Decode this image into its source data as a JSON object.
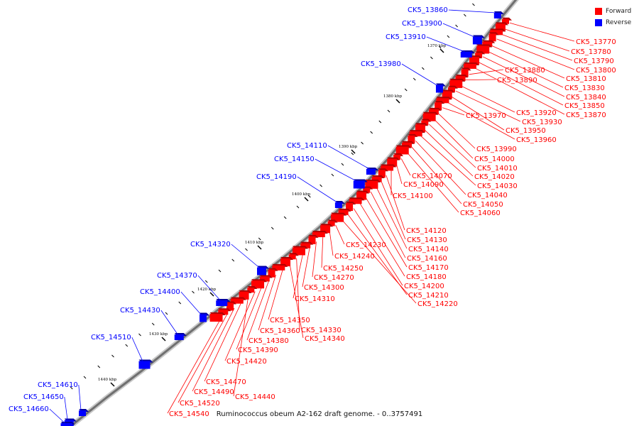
{
  "caption": "Ruminococcus obeum A2-162 draft genome. - 0..3757491",
  "legend": [
    {
      "label": "Forward",
      "color": "#ff0000"
    },
    {
      "label": "Reverse",
      "color": "#0000ff"
    }
  ],
  "colors": {
    "forward": "#ff0000",
    "reverse": "#0000ff",
    "backbone": "#707070"
  },
  "kbp_labels": [
    "1370 kbp",
    "1380 kbp",
    "1390 kbp",
    "1400 kbp",
    "1410 kbp",
    "1420 kbp",
    "1430 kbp",
    "1440 kbp"
  ],
  "forward_genes": [
    "CK5_13770",
    "CK5_13780",
    "CK5_13790",
    "CK5_13800",
    "CK5_13810",
    "CK5_13830",
    "CK5_13840",
    "CK5_13850",
    "CK5_13870",
    "CK5_13880",
    "CK5_13890",
    "CK5_13920",
    "CK5_13930",
    "CK5_13950",
    "CK5_13960",
    "CK5_13970",
    "CK5_13990",
    "CK5_14000",
    "CK5_14010",
    "CK5_14020",
    "CK5_14030",
    "CK5_14040",
    "CK5_14050",
    "CK5_14060",
    "CK5_14070",
    "CK5_14090",
    "CK5_14100",
    "CK5_14120",
    "CK5_14130",
    "CK5_14140",
    "CK5_14160",
    "CK5_14170",
    "CK5_14180",
    "CK5_14200",
    "CK5_14210",
    "CK5_14220",
    "CK5_14230",
    "CK5_14240",
    "CK5_14250",
    "CK5_14270",
    "CK5_14300",
    "CK5_14310",
    "CK5_14330",
    "CK5_14340",
    "CK5_14350",
    "CK5_14360",
    "CK5_14380",
    "CK5_14390",
    "CK5_14420",
    "CK5_14440",
    "CK5_14470",
    "CK5_14490",
    "CK5_14520",
    "CK5_14540"
  ],
  "reverse_genes": [
    "CK5_13860",
    "CK5_13900",
    "CK5_13910",
    "CK5_13980",
    "CK5_14110",
    "CK5_14150",
    "CK5_14190",
    "CK5_14320",
    "CK5_14370",
    "CK5_14400",
    "CK5_14430",
    "CK5_14510",
    "CK5_14610",
    "CK5_14650",
    "CK5_14660"
  ]
}
